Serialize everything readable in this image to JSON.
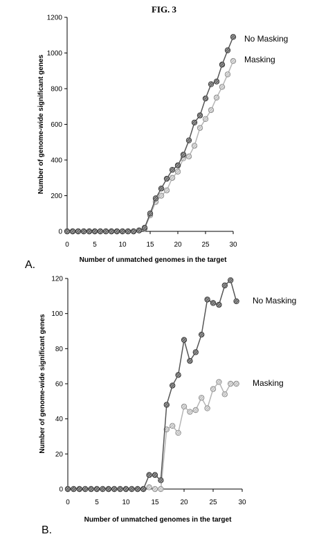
{
  "figure_title": "FIG. 3",
  "chart_data": [
    {
      "type": "line",
      "panel_label": "A.",
      "xlabel": "Number of unmatched genomes in the target",
      "ylabel": "Number of genome-wide significant genes",
      "xlim": [
        0,
        30
      ],
      "ylim": [
        0,
        1200
      ],
      "xticks": [
        0,
        5,
        10,
        15,
        20,
        25,
        30
      ],
      "yticks": [
        0,
        200,
        400,
        600,
        800,
        1000,
        1200
      ],
      "grid": false,
      "series": [
        {
          "name": "No Masking",
          "color": "#555555",
          "x": [
            0,
            1,
            2,
            3,
            4,
            5,
            6,
            7,
            8,
            9,
            10,
            11,
            12,
            13,
            14,
            15,
            16,
            17,
            18,
            19,
            20,
            21,
            22,
            23,
            24,
            25,
            26,
            27,
            28,
            29,
            30
          ],
          "y": [
            0,
            0,
            0,
            0,
            0,
            0,
            0,
            0,
            0,
            0,
            0,
            0,
            0,
            5,
            20,
            100,
            185,
            240,
            295,
            345,
            370,
            430,
            510,
            610,
            650,
            745,
            825,
            840,
            935,
            1015,
            1090
          ]
        },
        {
          "name": "Masking",
          "color": "#b5b5b5",
          "x": [
            0,
            1,
            2,
            3,
            4,
            5,
            6,
            7,
            8,
            9,
            10,
            11,
            12,
            13,
            14,
            15,
            16,
            17,
            18,
            19,
            20,
            21,
            22,
            23,
            24,
            25,
            26,
            27,
            28,
            29,
            30
          ],
          "y": [
            0,
            0,
            0,
            0,
            0,
            0,
            0,
            0,
            0,
            0,
            0,
            0,
            0,
            5,
            15,
            90,
            165,
            200,
            230,
            300,
            335,
            410,
            420,
            480,
            580,
            630,
            680,
            750,
            810,
            880,
            955
          ]
        }
      ]
    },
    {
      "type": "line",
      "panel_label": "B.",
      "xlabel": "Number of unmatched genomes in the target",
      "ylabel": "Number of genome-wide significant genes",
      "xlim": [
        0,
        30
      ],
      "ylim": [
        0,
        120
      ],
      "xticks": [
        0,
        5,
        10,
        15,
        20,
        25,
        30
      ],
      "yticks": [
        0,
        20,
        40,
        60,
        80,
        100,
        120
      ],
      "grid": false,
      "series": [
        {
          "name": "No Masking",
          "color": "#555555",
          "x": [
            0,
            1,
            2,
            3,
            4,
            5,
            6,
            7,
            8,
            9,
            10,
            11,
            12,
            13,
            14,
            15,
            16,
            17,
            18,
            19,
            20,
            21,
            22,
            23,
            24,
            25,
            26,
            27,
            28,
            29
          ],
          "y": [
            0,
            0,
            0,
            0,
            0,
            0,
            0,
            0,
            0,
            0,
            0,
            0,
            0,
            0,
            8,
            8,
            5,
            48,
            59,
            65,
            85,
            73,
            78,
            88,
            108,
            106,
            105,
            116,
            119,
            107
          ]
        },
        {
          "name": "Masking",
          "color": "#b5b5b5",
          "x": [
            0,
            1,
            2,
            3,
            4,
            5,
            6,
            7,
            8,
            9,
            10,
            11,
            12,
            13,
            14,
            15,
            16,
            17,
            18,
            19,
            20,
            21,
            22,
            23,
            24,
            25,
            26,
            27,
            28,
            29
          ],
          "y": [
            0,
            0,
            0,
            0,
            0,
            0,
            0,
            0,
            0,
            0,
            0,
            0,
            0,
            0,
            1,
            0,
            0,
            34,
            36,
            32,
            47,
            44,
            45,
            52,
            46,
            57,
            61,
            54,
            60,
            60
          ]
        }
      ]
    }
  ]
}
